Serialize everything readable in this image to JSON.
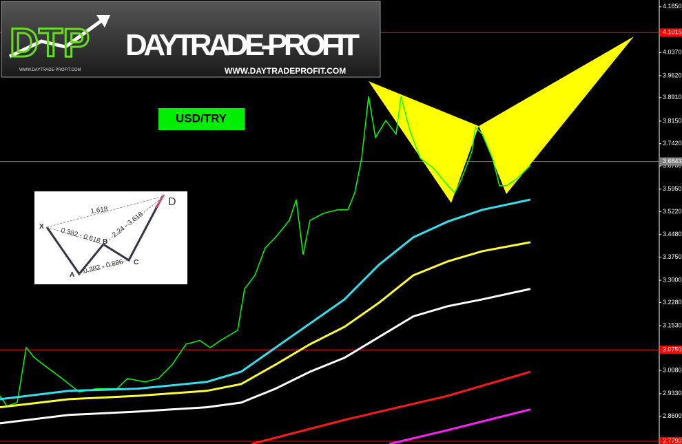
{
  "chart_data": {
    "type": "line",
    "title": "USD/TRY",
    "xlim": [
      0,
      955
    ],
    "ylim": [
      2.77,
      4.207
    ],
    "yticks": [
      {
        "value": 4.185,
        "label": "4.1850"
      },
      {
        "value": 4.037,
        "label": "4.0370"
      },
      {
        "value": 3.962,
        "label": "3.9620"
      },
      {
        "value": 3.891,
        "label": "3.8910"
      },
      {
        "value": 3.815,
        "label": "3.8150"
      },
      {
        "value": 3.742,
        "label": "3.7420"
      },
      {
        "value": 3.67,
        "label": "3.6700"
      },
      {
        "value": 3.595,
        "label": "3.5950"
      },
      {
        "value": 3.522,
        "label": "3.5220"
      },
      {
        "value": 3.448,
        "label": "3.4480"
      },
      {
        "value": 3.375,
        "label": "3.3750"
      },
      {
        "value": 3.3,
        "label": "3.3000"
      },
      {
        "value": 3.228,
        "label": "3.2280"
      },
      {
        "value": 3.153,
        "label": "3.1530"
      },
      {
        "value": 3.008,
        "label": "3.0080"
      },
      {
        "value": 2.933,
        "label": "2.9330"
      },
      {
        "value": 2.86,
        "label": "2.8600"
      }
    ],
    "levels": [
      {
        "value": 4.1015,
        "color": "#ff0000"
      },
      {
        "value": 3.6843,
        "color": "#808080"
      },
      {
        "value": {
          "value": 3.075,
          "label": "3.0750"
        },
        "color": "#ff0000"
      },
      {
        "value": {
          "value": 2.779,
          "label": "2.7790"
        },
        "color": "#ff0000"
      }
    ],
    "series": [
      {
        "color": "#00ff00",
        "x": [
          0,
          10,
          25,
          38,
          50,
          70,
          90,
          115,
          140,
          170,
          185,
          210,
          230,
          250,
          270,
          290,
          305,
          320,
          345,
          355,
          370,
          385,
          400,
          420,
          430,
          440,
          450,
          470,
          490,
          505,
          515,
          525,
          535,
          545,
          560,
          575,
          582,
          595,
          610,
          630,
          650,
          660,
          670,
          685,
          690,
          700,
          715,
          725,
          735,
          750,
          770
        ],
        "values": [
          2.926,
          2.893,
          2.904,
          3.082,
          3.049,
          3.015,
          2.982,
          2.938,
          2.949,
          2.949,
          2.982,
          2.971,
          2.982,
          3.027,
          3.093,
          3.105,
          3.082,
          3.105,
          3.138,
          3.272,
          3.316,
          3.405,
          3.439,
          3.494,
          3.561,
          3.383,
          3.494,
          3.517,
          3.528,
          3.528,
          3.583,
          3.695,
          3.895,
          3.762,
          3.817,
          3.773,
          3.895,
          3.784,
          3.695,
          3.661,
          3.606,
          3.583,
          3.628,
          3.717,
          3.795,
          3.773,
          3.695,
          3.606,
          3.606,
          3.628,
          3.672
        ]
      },
      {
        "color": "#33e0f0",
        "x": [
          0,
          100,
          200,
          300,
          350,
          400,
          450,
          500,
          550,
          600,
          650,
          700,
          770
        ],
        "values": [
          2.915,
          2.942,
          2.949,
          2.971,
          3.004,
          3.082,
          3.16,
          3.238,
          3.35,
          3.439,
          3.49,
          3.528,
          3.561
        ]
      },
      {
        "color": "#ffff33",
        "x": [
          0,
          100,
          200,
          300,
          350,
          400,
          450,
          500,
          550,
          600,
          650,
          700,
          770
        ],
        "values": [
          2.889,
          2.915,
          2.926,
          2.942,
          2.964,
          3.027,
          3.093,
          3.149,
          3.227,
          3.316,
          3.361,
          3.394,
          3.423
        ]
      },
      {
        "color": "#ffffff",
        "x": [
          0,
          100,
          200,
          300,
          350,
          400,
          450,
          500,
          550,
          600,
          650,
          700,
          770
        ],
        "values": [
          2.837,
          2.864,
          2.875,
          2.889,
          2.904,
          2.949,
          3.004,
          3.049,
          3.116,
          3.183,
          3.216,
          3.238,
          3.272
        ]
      },
      {
        "color": "#ff1a1a",
        "x": [
          365,
          500,
          650,
          770
        ],
        "values": [
          2.77,
          2.848,
          2.926,
          3.004
        ]
      },
      {
        "color": "#ff22ff",
        "x": [
          565,
          650,
          770
        ],
        "values": [
          2.77,
          2.815,
          2.882
        ]
      }
    ],
    "pattern": {
      "color": "#ffff00",
      "x": [
        535,
        655,
        695,
        735,
        920
      ],
      "values": [
        3.944,
        3.55,
        3.799,
        3.579,
        4.089
      ]
    }
  },
  "logo": {
    "mark": "DTP",
    "name": "DAYTRADE-PROFIT",
    "url": "WWW.DAYTRADEPROFIT.COM",
    "small_url": "WWW.DAYTRADE-PROFIT.COM"
  },
  "inset": {
    "points": [
      "X",
      "A",
      "B",
      "C",
      "D"
    ],
    "ratios": [
      "1.618",
      "0.382 - 0.618",
      "2.24 - 3.618",
      "0.382 - 0.886"
    ]
  }
}
